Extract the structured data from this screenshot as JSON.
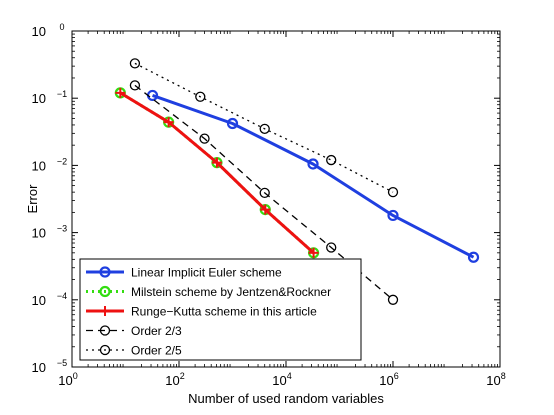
{
  "chart_data": {
    "type": "line",
    "xlabel": "Number of used random variables",
    "ylabel": "Error",
    "xscale": "log",
    "yscale": "log",
    "xlim": [
      1,
      100000000
    ],
    "ylim": [
      1e-05,
      1
    ],
    "grid": false,
    "legend_position": "bottom-left",
    "x_ticks": [
      {
        "value": 1,
        "base": "10",
        "exp": "0"
      },
      {
        "value": 100,
        "base": "10",
        "exp": "2"
      },
      {
        "value": 10000,
        "base": "10",
        "exp": "4"
      },
      {
        "value": 1000000,
        "base": "10",
        "exp": "6"
      },
      {
        "value": 100000000,
        "base": "10",
        "exp": "8"
      }
    ],
    "y_ticks": [
      {
        "value": 1e-05,
        "base": "10",
        "exp": "−5"
      },
      {
        "value": 0.0001,
        "base": "10",
        "exp": "−4"
      },
      {
        "value": 0.001,
        "base": "10",
        "exp": "−3"
      },
      {
        "value": 0.01,
        "base": "10",
        "exp": "−2"
      },
      {
        "value": 0.1,
        "base": "10",
        "exp": "−1"
      },
      {
        "value": 1,
        "base": "10",
        "exp": "0"
      }
    ],
    "series": [
      {
        "name": "Linear Implicit Euler scheme",
        "color": "#1f3fe0",
        "dash": "solid",
        "line_width": 3,
        "marker": "circle",
        "marker_face": "none",
        "marker_edge": "#1f3fe0",
        "x": [
          32,
          1000,
          32000,
          1000000,
          32000000
        ],
        "y": [
          0.11,
          0.042,
          0.0105,
          0.0018,
          0.00043
        ]
      },
      {
        "name": "Milstein scheme by Jentzen&Rockner",
        "color": "#33dd11",
        "dash": "dotted",
        "line_width": 3,
        "marker": "circle",
        "marker_face": "none",
        "marker_edge": "#33dd11",
        "x": [
          8,
          64,
          512,
          4096,
          32768
        ],
        "y": [
          0.12,
          0.044,
          0.011,
          0.0022,
          0.0005
        ]
      },
      {
        "name": "Runge−Kutta scheme in this article",
        "color": "#ee1111",
        "dash": "solid",
        "line_width": 3,
        "marker": "plus",
        "marker_face": "none",
        "marker_edge": "#ee1111",
        "x": [
          8,
          64,
          512,
          4096,
          32768
        ],
        "y": [
          0.12,
          0.044,
          0.011,
          0.0022,
          0.0005
        ]
      },
      {
        "name": "Order 2/3",
        "color": "#000000",
        "dash": "dashed",
        "line_width": 1.3,
        "marker": "circle",
        "marker_face": "none",
        "marker_edge": "#000000",
        "x": [
          15,
          300,
          4000,
          70000,
          1000000
        ],
        "y": [
          0.155,
          0.025,
          0.0039,
          0.0006,
          0.0001
        ]
      },
      {
        "name": "Order 2/5",
        "color": "#000000",
        "dash": "dotted",
        "line_width": 1.3,
        "marker": "circle",
        "marker_face": "none",
        "marker_edge": "#000000",
        "x": [
          15,
          250,
          4000,
          70000,
          1000000
        ],
        "y": [
          0.33,
          0.105,
          0.035,
          0.012,
          0.004
        ]
      }
    ]
  }
}
